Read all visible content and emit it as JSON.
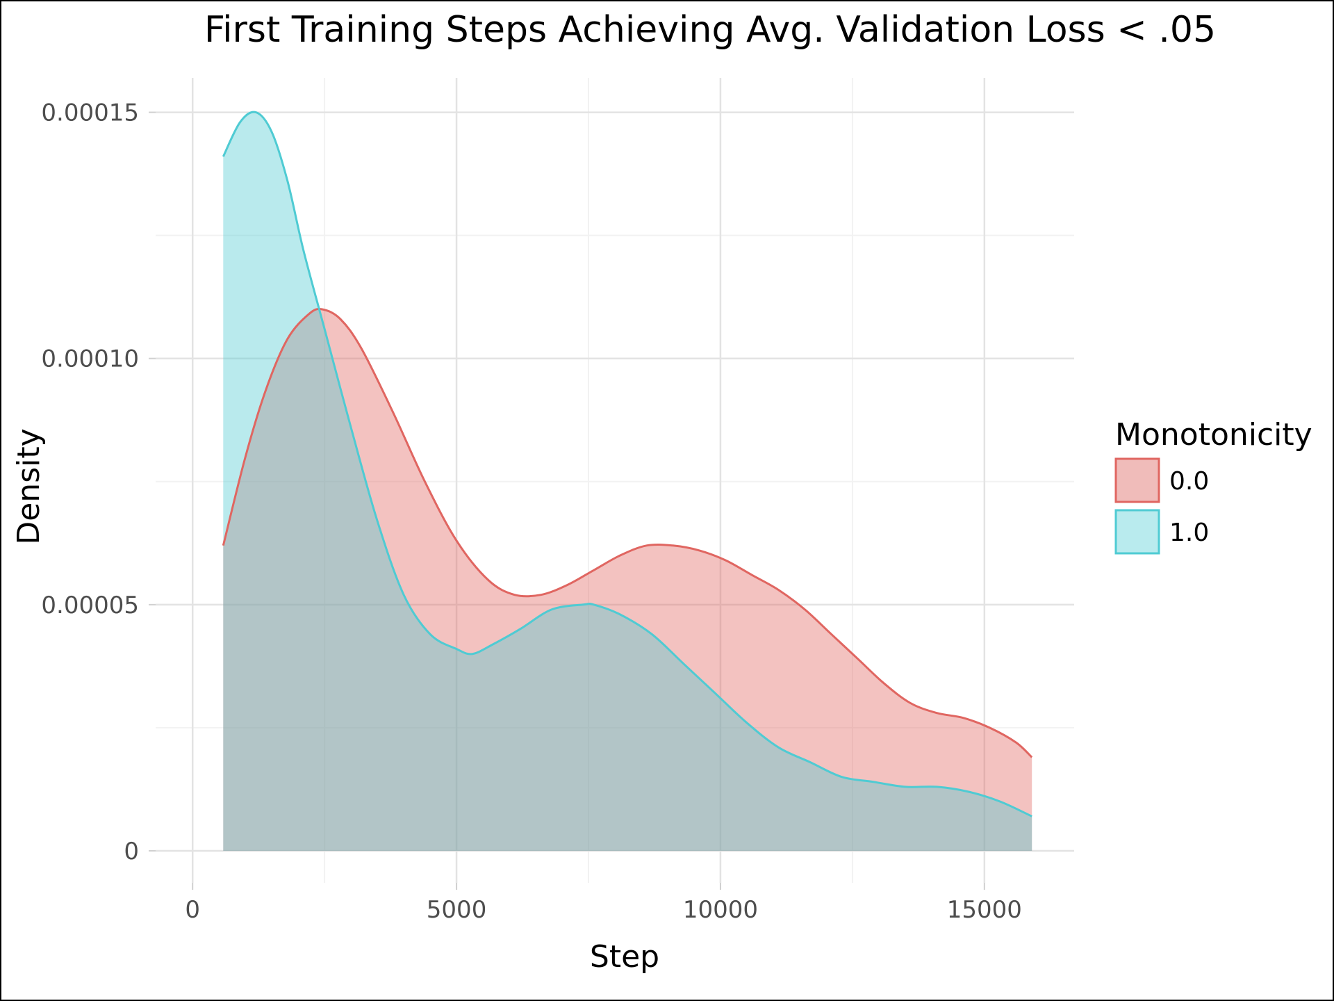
{
  "chart_data": {
    "type": "area",
    "subtype": "density",
    "title": "First Training Steps Achieving Avg. Validation Loss < .05",
    "xlabel": "Step",
    "ylabel": "Density",
    "xlim": [
      -700,
      16700
    ],
    "ylim": [
      -6.5e-06,
      0.000157
    ],
    "x_ticks": [
      0,
      5000,
      10000,
      15000
    ],
    "x_tick_labels": [
      "0",
      "5000",
      "10000",
      "15000"
    ],
    "y_ticks": [
      0,
      5e-05,
      0.0001,
      0.00015
    ],
    "y_tick_labels": [
      "0",
      "0.00005",
      "0.00010",
      "0.00015"
    ],
    "grid": true,
    "legend": {
      "title": "Monotonicity",
      "placement": "right"
    },
    "series": [
      {
        "name": "0.0",
        "line_color": "#E06661",
        "fill_color": "#F0BCBA",
        "x": [
          580,
          1000,
          1400,
          1800,
          2200,
          2450,
          2800,
          3200,
          3800,
          4400,
          5000,
          5600,
          6100,
          6600,
          7100,
          7600,
          8100,
          8600,
          9100,
          9600,
          10100,
          10600,
          11100,
          11600,
          12100,
          12600,
          13100,
          13600,
          14100,
          14600,
          15100,
          15600,
          15900
        ],
        "y": [
          6.2e-05,
          8e-05,
          9.4e-05,
          0.000104,
          0.000109,
          0.00011,
          0.000108,
          0.000102,
          8.9e-05,
          7.5e-05,
          6.3e-05,
          5.5e-05,
          5.2e-05,
          5.2e-05,
          5.4e-05,
          5.7e-05,
          6e-05,
          6.2e-05,
          6.2e-05,
          6.1e-05,
          5.9e-05,
          5.6e-05,
          5.3e-05,
          4.9e-05,
          4.4e-05,
          3.9e-05,
          3.4e-05,
          3e-05,
          2.8e-05,
          2.7e-05,
          2.5e-05,
          2.2e-05,
          1.9e-05
        ]
      },
      {
        "name": "1.0",
        "line_color": "#4FCBD3",
        "fill_color": "#B9EBEE",
        "x": [
          580,
          900,
          1200,
          1500,
          1800,
          2100,
          2500,
          3000,
          3500,
          4000,
          4500,
          5000,
          5300,
          5700,
          6200,
          6800,
          7400,
          7600,
          8100,
          8700,
          9300,
          9900,
          10500,
          11100,
          11700,
          12300,
          12900,
          13500,
          14100,
          14700,
          15300,
          15900
        ],
        "y": [
          0.000141,
          0.000148,
          0.00015,
          0.000146,
          0.000136,
          0.000122,
          0.000106,
          8.6e-05,
          6.7e-05,
          5.2e-05,
          4.4e-05,
          4.1e-05,
          4e-05,
          4.2e-05,
          4.5e-05,
          4.9e-05,
          5e-05,
          5e-05,
          4.8e-05,
          4.4e-05,
          3.8e-05,
          3.2e-05,
          2.6e-05,
          2.1e-05,
          1.8e-05,
          1.5e-05,
          1.4e-05,
          1.3e-05,
          1.3e-05,
          1.2e-05,
          1e-05,
          7e-06
        ]
      }
    ]
  }
}
